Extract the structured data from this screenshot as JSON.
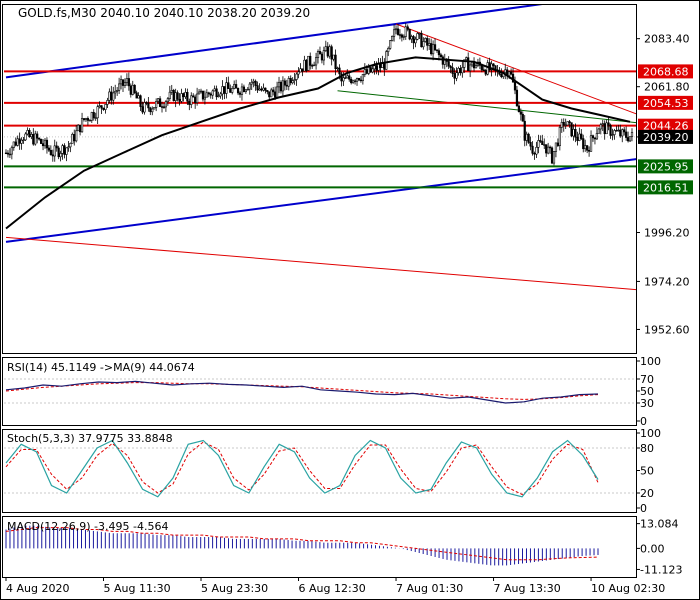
{
  "colors": {
    "background": "#ffffff",
    "frame": "#000000",
    "candle": "#000000",
    "channel": "#0000cc",
    "resistance": "#e00000",
    "support": "#006600",
    "ma": "#000000",
    "dotted_grid": "#c8c8c8",
    "rsi_line": "#1a1a6e",
    "rsi_ma": "#e00000",
    "stoch_main": "#2aa3a3",
    "stoch_signal": "#e00000",
    "macd_hist": "#1a1a9e",
    "macd_signal": "#e00000",
    "current_price_bg": "#000000"
  },
  "chart_data": [
    {
      "type": "candlestick",
      "title": "GOLD.fs,M30  2040.10 2040.10 2038.20 2039.20",
      "title_parts": {
        "symbol": "GOLD.fs,M30",
        "open": 2040.1,
        "high": 2040.1,
        "low": 2038.2,
        "close": 2039.2
      },
      "ylim": [
        1942,
        2099
      ],
      "y_ticks": [
        2083.4,
        2061.8,
        2039.2,
        1996.2,
        1974.2,
        1952.6
      ],
      "x_ticks": [
        "4 Aug 2020",
        "5 Aug 11:30",
        "5 Aug 23:30",
        "6 Aug 12:30",
        "7 Aug 01:30",
        "7 Aug 13:30",
        "10 Aug 02:30"
      ],
      "x_tick_positions": [
        0,
        50,
        100,
        150,
        200,
        250,
        300
      ],
      "bar_count": 322,
      "current_price": 2039.2,
      "horizontal_levels": [
        {
          "label": "2068.68",
          "value": 2068.68,
          "kind": "resistance"
        },
        {
          "label": "2054.53",
          "value": 2054.53,
          "kind": "resistance"
        },
        {
          "label": "2044.26",
          "value": 2044.26,
          "kind": "resistance"
        },
        {
          "label": "2025.95",
          "value": 2025.95,
          "kind": "support"
        },
        {
          "label": "2016.51",
          "value": 2016.51,
          "kind": "support"
        }
      ],
      "trend_lines": [
        {
          "kind": "channel",
          "points": [
            [
              0,
              2066
            ],
            [
              275,
              2099
            ]
          ]
        },
        {
          "kind": "channel",
          "points": [
            [
              0,
              1992
            ],
            [
              330,
              2030
            ]
          ]
        },
        {
          "kind": "resistance",
          "points": [
            [
              0,
              1994
            ],
            [
              330,
              1970
            ]
          ]
        },
        {
          "kind": "resistance",
          "points": [
            [
              200,
              2090
            ],
            [
              325,
              2049
            ]
          ]
        },
        {
          "kind": "support",
          "points": [
            [
              170,
              2060
            ],
            [
              330,
              2045
            ]
          ]
        }
      ],
      "price_path": [
        [
          0,
          2032
        ],
        [
          8,
          2040
        ],
        [
          16,
          2038
        ],
        [
          24,
          2032
        ],
        [
          32,
          2035
        ],
        [
          40,
          2047
        ],
        [
          48,
          2052
        ],
        [
          56,
          2060
        ],
        [
          62,
          2064
        ],
        [
          70,
          2052
        ],
        [
          78,
          2054
        ],
        [
          86,
          2058
        ],
        [
          94,
          2056
        ],
        [
          102,
          2058
        ],
        [
          110,
          2061
        ],
        [
          118,
          2060
        ],
        [
          126,
          2064
        ],
        [
          134,
          2058
        ],
        [
          142,
          2062
        ],
        [
          150,
          2070
        ],
        [
          158,
          2074
        ],
        [
          166,
          2078
        ],
        [
          172,
          2064
        ],
        [
          178,
          2066
        ],
        [
          186,
          2068
        ],
        [
          194,
          2072
        ],
        [
          200,
          2088
        ],
        [
          206,
          2086
        ],
        [
          212,
          2083
        ],
        [
          218,
          2079
        ],
        [
          224,
          2074
        ],
        [
          230,
          2068
        ],
        [
          236,
          2072
        ],
        [
          244,
          2071
        ],
        [
          252,
          2068
        ],
        [
          258,
          2070
        ],
        [
          262,
          2056
        ],
        [
          266,
          2040
        ],
        [
          270,
          2034
        ],
        [
          276,
          2036
        ],
        [
          280,
          2030
        ],
        [
          286,
          2046
        ],
        [
          292,
          2040
        ],
        [
          298,
          2034
        ],
        [
          304,
          2044
        ],
        [
          310,
          2042
        ],
        [
          316,
          2040
        ],
        [
          322,
          2039.2
        ]
      ],
      "ma_path": [
        [
          0,
          1998
        ],
        [
          20,
          2012
        ],
        [
          40,
          2024
        ],
        [
          60,
          2032
        ],
        [
          80,
          2040
        ],
        [
          100,
          2046
        ],
        [
          120,
          2052
        ],
        [
          140,
          2057
        ],
        [
          160,
          2061
        ],
        [
          175,
          2068
        ],
        [
          190,
          2072
        ],
        [
          210,
          2075
        ],
        [
          240,
          2073
        ],
        [
          255,
          2068
        ],
        [
          265,
          2062
        ],
        [
          275,
          2056
        ],
        [
          290,
          2052
        ],
        [
          305,
          2049
        ],
        [
          320,
          2046
        ]
      ]
    },
    {
      "type": "line",
      "title": "RSI(14) 45.1149  ->MA(9) 44.0674",
      "ylim": [
        0,
        100
      ],
      "y_ticks": [
        100,
        70,
        50,
        30,
        0
      ],
      "guide_levels": [
        70,
        30
      ],
      "series": [
        {
          "name": "RSI(14)",
          "values": [
            52,
            55,
            60,
            58,
            62,
            65,
            64,
            66,
            63,
            60,
            62,
            63,
            61,
            60,
            58,
            56,
            58,
            52,
            50,
            48,
            45,
            44,
            46,
            42,
            38,
            40,
            35,
            30,
            32,
            38,
            40,
            44,
            45
          ]
        },
        {
          "name": "MA(9)",
          "values": [
            50,
            53,
            56,
            58,
            60,
            62,
            63,
            64,
            64,
            63,
            62,
            62,
            61,
            60,
            59,
            58,
            57,
            55,
            53,
            51,
            49,
            47,
            46,
            45,
            43,
            41,
            39,
            37,
            36,
            37,
            39,
            42,
            44
          ]
        }
      ]
    },
    {
      "type": "line",
      "title": "Stoch(5,3,3) 37.9775 33.8848",
      "ylim": [
        0,
        100
      ],
      "y_ticks": [
        100,
        80,
        50,
        20,
        0
      ],
      "guide_levels": [
        80,
        20
      ],
      "series": [
        {
          "name": "Stoch main",
          "values": [
            60,
            85,
            75,
            30,
            20,
            50,
            80,
            90,
            60,
            25,
            15,
            40,
            85,
            90,
            70,
            30,
            20,
            55,
            85,
            75,
            40,
            20,
            30,
            70,
            90,
            80,
            40,
            20,
            25,
            60,
            88,
            80,
            45,
            20,
            15,
            40,
            75,
            90,
            70,
            38
          ]
        },
        {
          "name": "Stoch signal",
          "values": [
            55,
            78,
            78,
            45,
            25,
            40,
            70,
            86,
            70,
            35,
            20,
            32,
            72,
            88,
            78,
            40,
            24,
            45,
            76,
            80,
            50,
            26,
            26,
            58,
            84,
            84,
            52,
            26,
            22,
            48,
            80,
            84,
            55,
            28,
            18,
            32,
            65,
            85,
            78,
            34
          ]
        }
      ]
    },
    {
      "type": "bar",
      "title": "MACD(12,26,9) -3.495 -4.564",
      "ylim": [
        -13,
        15
      ],
      "y_ticks": [
        13.084,
        0.0,
        -11.123
      ],
      "y_tick_labels": [
        "13.084",
        "0.00",
        "-11.123"
      ],
      "series": [
        {
          "name": "MACD",
          "values": [
            10,
            12,
            12,
            11,
            11,
            10,
            9,
            8,
            8,
            8,
            7,
            7,
            6,
            6,
            6,
            5,
            5,
            5,
            5,
            4,
            4,
            3,
            3,
            3,
            2,
            1,
            0,
            -2,
            -4,
            -6,
            -7,
            -8,
            -9,
            -9,
            -8,
            -7,
            -6,
            -5,
            -4,
            -3.5
          ]
        },
        {
          "name": "Signal",
          "values": [
            9,
            10,
            11,
            11,
            11,
            10,
            10,
            9,
            9,
            8,
            8,
            7,
            7,
            7,
            6,
            6,
            6,
            5,
            5,
            5,
            4,
            4,
            4,
            3,
            3,
            2,
            1,
            0,
            -1,
            -2,
            -3,
            -4,
            -5,
            -6,
            -6,
            -6,
            -5.5,
            -5,
            -4.8,
            -4.6
          ]
        }
      ]
    }
  ]
}
